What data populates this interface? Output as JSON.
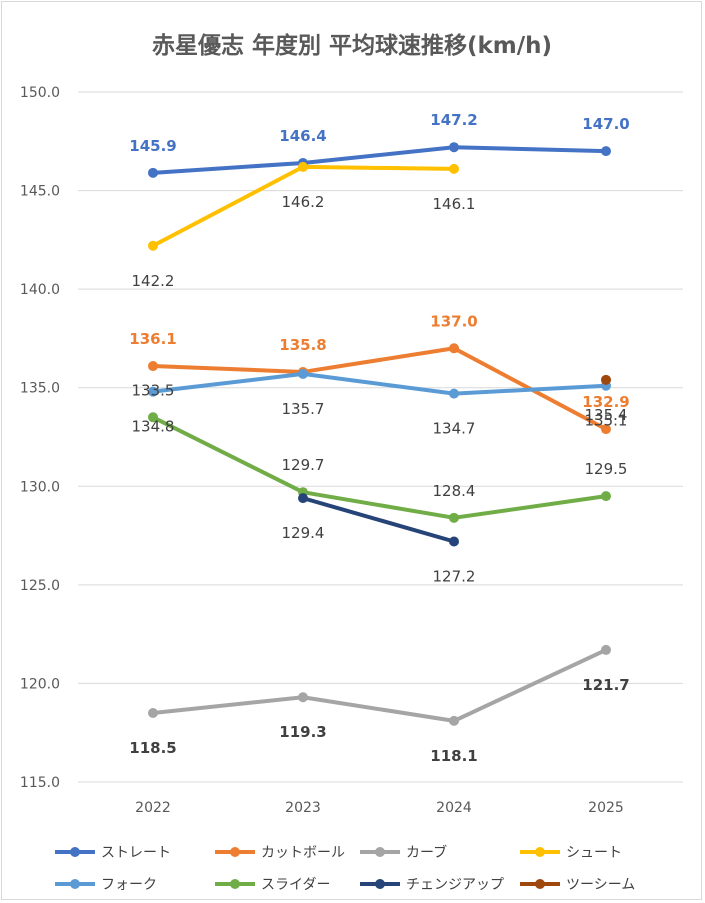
{
  "chart_data": {
    "type": "line",
    "title": "赤星優志 年度別 平均球速推移(km/h)",
    "xlabel": "",
    "ylabel": "",
    "categories": [
      "2022",
      "2023",
      "2024",
      "2025"
    ],
    "ylim": [
      115,
      150
    ],
    "yticks": [
      "115.0",
      "120.0",
      "125.0",
      "130.0",
      "135.0",
      "140.0",
      "145.0",
      "150.0"
    ],
    "grid": true,
    "legend_position": "bottom",
    "series": [
      {
        "name": "ストレート",
        "color": "#4472c4",
        "values": [
          145.9,
          146.4,
          147.2,
          147.0
        ],
        "labels": [
          "145.9",
          "146.4",
          "147.2",
          "147.0"
        ],
        "label_color": "#4472c4",
        "label_bold": true,
        "label_pos": "above"
      },
      {
        "name": "カットボール",
        "color": "#ed7d31",
        "values": [
          136.1,
          135.8,
          137.0,
          132.9
        ],
        "labels": [
          "136.1",
          "135.8",
          "137.0",
          "132.9"
        ],
        "label_color": "#ed7d31",
        "label_bold": true,
        "label_pos": "above"
      },
      {
        "name": "カーブ",
        "color": "#a5a5a5",
        "values": [
          118.5,
          119.3,
          118.1,
          121.7
        ],
        "labels": [
          "118.5",
          "119.3",
          "118.1",
          "121.7"
        ],
        "label_color": "#404040",
        "label_bold": true,
        "label_pos": "below"
      },
      {
        "name": "シュート",
        "color": "#ffc000",
        "values": [
          142.2,
          146.2,
          146.1,
          null
        ],
        "labels": [
          "142.2",
          "146.2",
          "146.1",
          ""
        ],
        "label_color": "#404040",
        "label_bold": false,
        "label_pos": "below"
      },
      {
        "name": "フォーク",
        "color": "#5b9bd5",
        "values": [
          134.8,
          135.7,
          134.7,
          135.1
        ],
        "labels": [
          "134.8",
          "135.7",
          "134.7",
          "135.1"
        ],
        "label_color": "#404040",
        "label_bold": false,
        "label_pos": "below"
      },
      {
        "name": "スライダー",
        "color": "#70ad47",
        "values": [
          133.5,
          129.7,
          128.4,
          129.5
        ],
        "labels": [
          "133.5",
          "129.7",
          "128.4",
          "129.5"
        ],
        "label_color": "#404040",
        "label_bold": false,
        "label_pos": "above"
      },
      {
        "name": "チェンジアップ",
        "color": "#264478",
        "values": [
          null,
          129.4,
          127.2,
          null
        ],
        "labels": [
          "",
          "129.4",
          "127.2",
          ""
        ],
        "label_color": "#404040",
        "label_bold": false,
        "label_pos": "below"
      },
      {
        "name": "ツーシーム",
        "color": "#9e480e",
        "values": [
          null,
          null,
          null,
          135.4
        ],
        "labels": [
          "",
          "",
          "",
          "135.4"
        ],
        "label_color": "#404040",
        "label_bold": false,
        "label_pos": "below"
      }
    ]
  }
}
